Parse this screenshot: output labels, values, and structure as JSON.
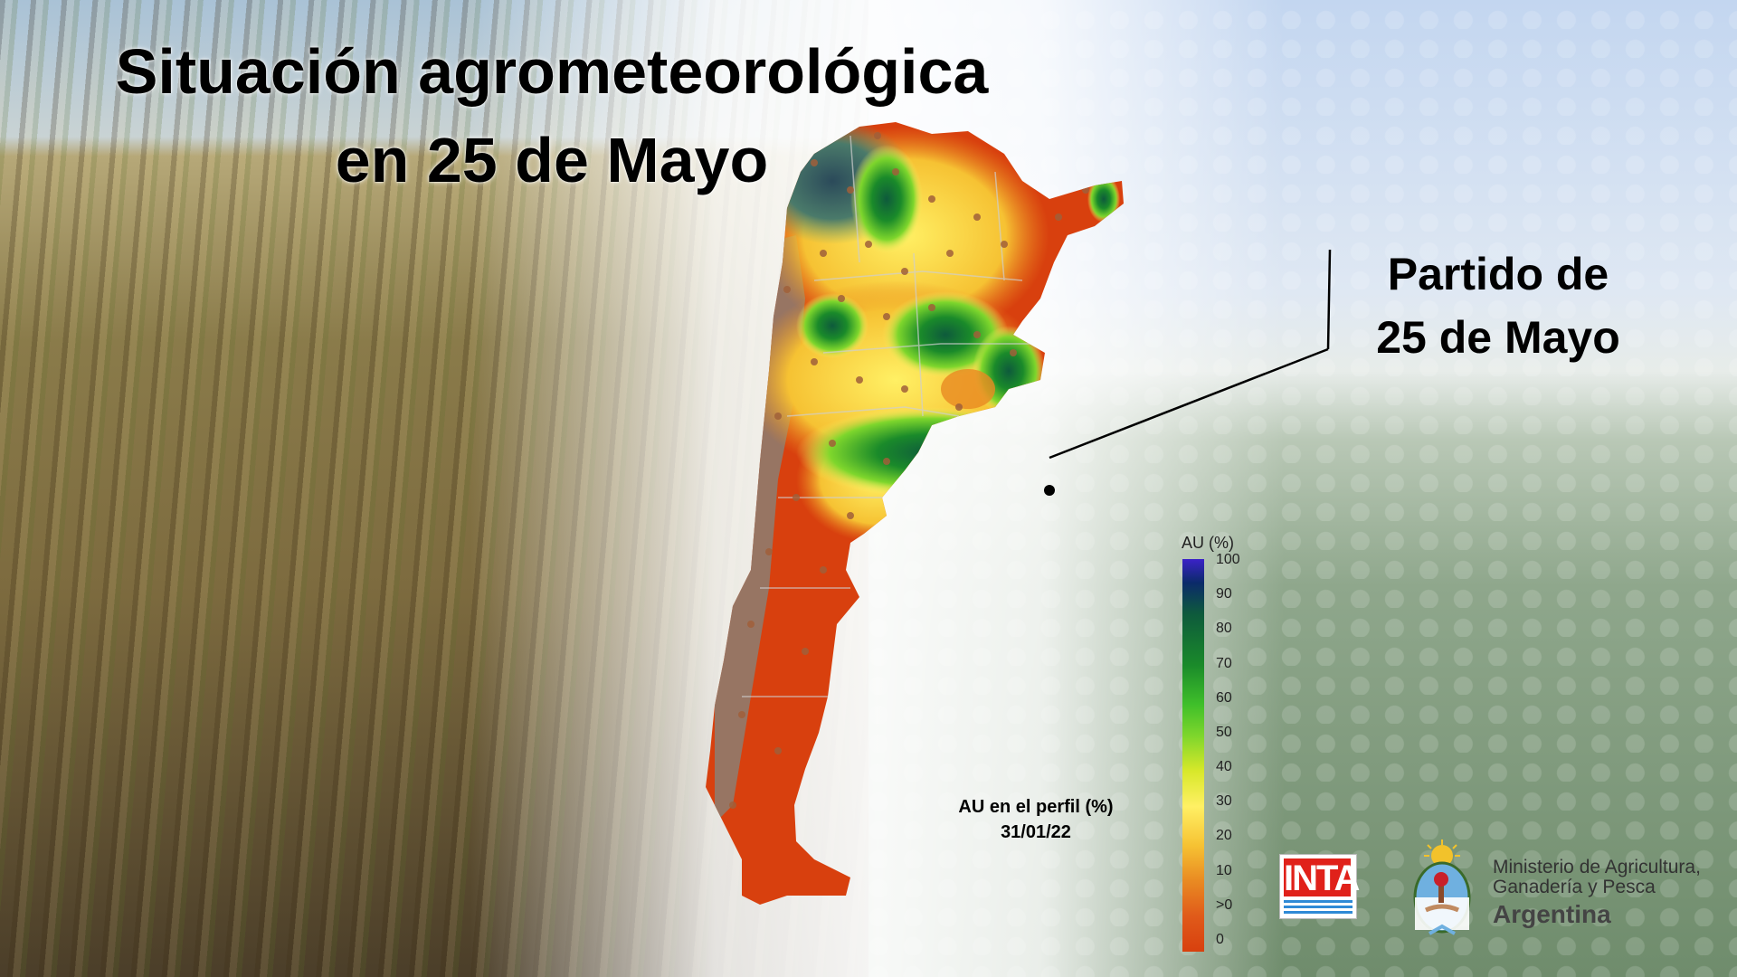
{
  "title": {
    "line1": "Situación agrometeorológica",
    "line2": "en 25 de Mayo"
  },
  "callout": {
    "line1": "Partido de",
    "line2": "25 de Mayo"
  },
  "map": {
    "legend_title": "AU (%)",
    "legend_ticks": [
      "100",
      "90",
      "80",
      "70",
      "60",
      "50",
      "40",
      "30",
      "20",
      "10",
      ">0",
      "0"
    ],
    "caption_line1": "AU en el perfil (%)",
    "caption_line2": "31/01/22",
    "colors": {
      "dry": "#d8400e",
      "low": "#e98a22",
      "medium": "#fff064",
      "wet": "#3fbf2a",
      "very_wet": "#0e5a3c",
      "saturated": "#3b22c8"
    }
  },
  "logos": {
    "inta": "INTA",
    "ministry_line1": "Ministerio de Agricultura,",
    "ministry_line2": "Ganadería y Pesca",
    "ministry_line3": "Argentina"
  }
}
